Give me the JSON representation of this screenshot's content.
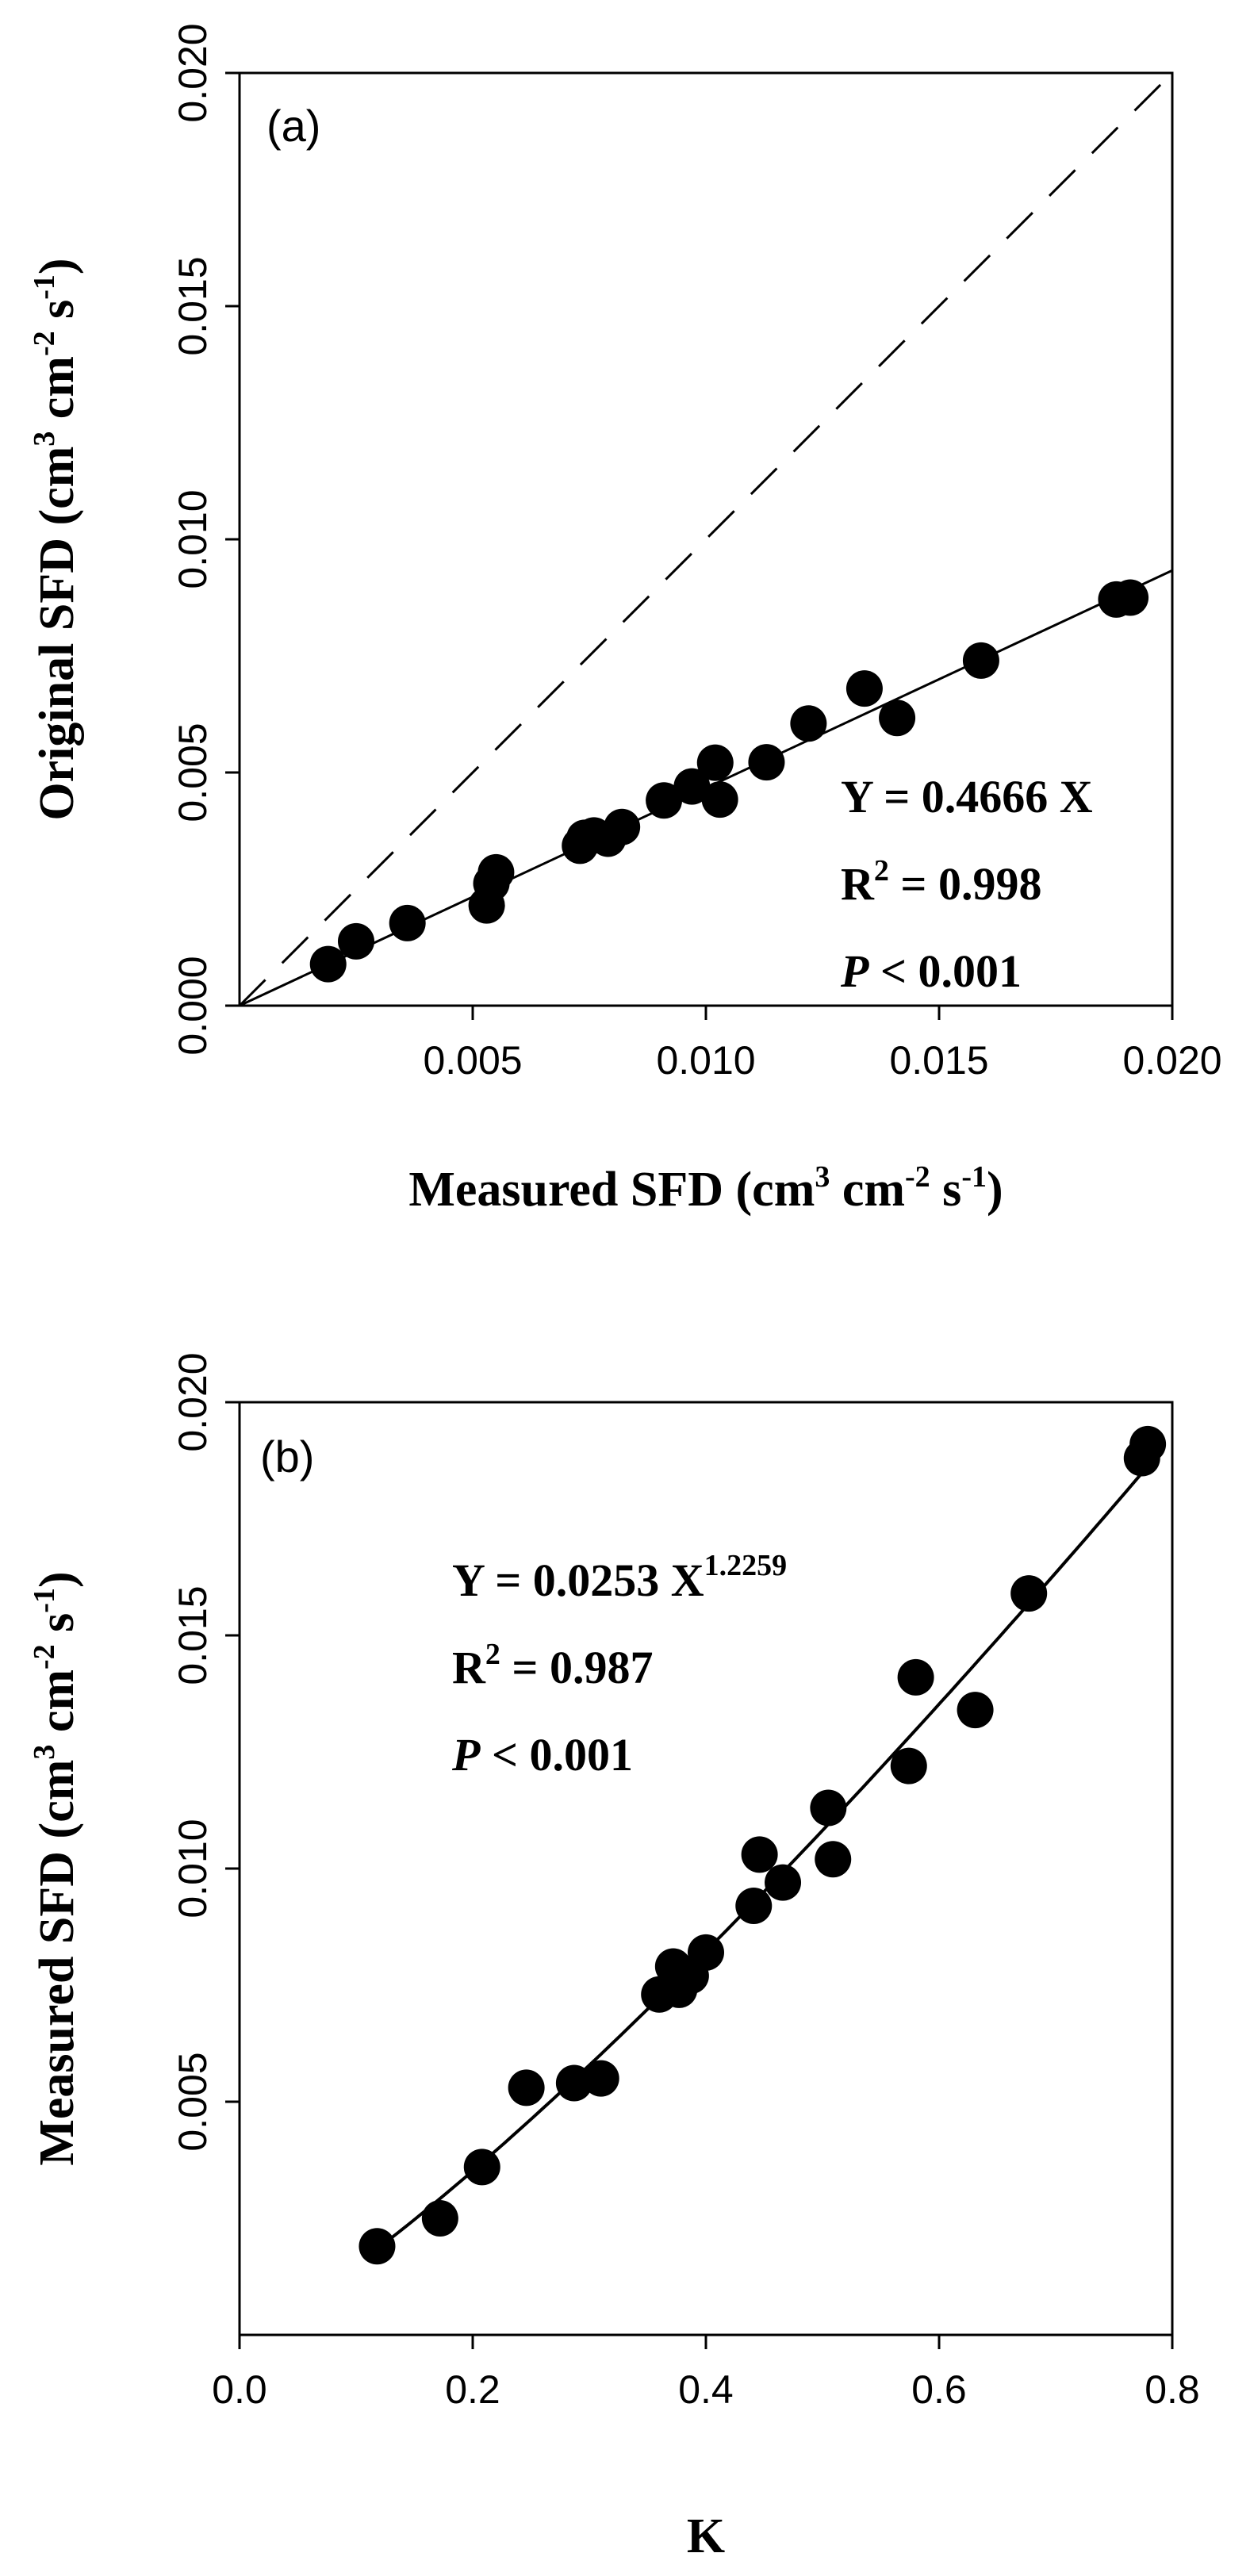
{
  "chart_data": [
    {
      "type": "scatter",
      "panel_label": "(a)",
      "ylabel_parts": [
        "Original SFD (cm",
        "3",
        " cm",
        "-2",
        " s",
        "-1",
        ")"
      ],
      "xlabel_parts": [
        "Measured SFD (cm",
        "3",
        " cm",
        "-2",
        " s",
        "-1",
        ")"
      ],
      "xlim": [
        0.0,
        0.02
      ],
      "ylim": [
        0.0,
        0.02
      ],
      "xticks": [
        0.005,
        0.01,
        0.015,
        0.02
      ],
      "xtick_labels": [
        "0.005",
        "0.010",
        "0.015",
        "0.020"
      ],
      "yticks": [
        0.0,
        0.005,
        0.01,
        0.015,
        0.02
      ],
      "ytick_labels": [
        "0.000",
        "0.005",
        "0.010",
        "0.015",
        "0.020"
      ],
      "annotations": {
        "line1": "Y = 0.4666 X",
        "line2_prefix": "R",
        "line2_sup": "2",
        "line2_suffix": " = 0.998",
        "line3_italic": "P",
        "line3_suffix": " < 0.001"
      },
      "series": [
        {
          "name": "observations",
          "x": [
            0.0019,
            0.0025,
            0.0036,
            0.0053,
            0.0054,
            0.0055,
            0.0073,
            0.0074,
            0.0076,
            0.0079,
            0.0082,
            0.0091,
            0.0097,
            0.0102,
            0.0103,
            0.0113,
            0.0122,
            0.0134,
            0.0141,
            0.0159,
            0.0188,
            0.0191
          ],
          "y": [
            0.00089,
            0.00138,
            0.00177,
            0.00215,
            0.00262,
            0.00286,
            0.00343,
            0.0036,
            0.00365,
            0.00358,
            0.00383,
            0.0044,
            0.0047,
            0.00521,
            0.00442,
            0.00522,
            0.00605,
            0.0068,
            0.00617,
            0.0074,
            0.00871,
            0.00875
          ]
        },
        {
          "name": "fit",
          "slope": 0.4666
        },
        {
          "name": "1:1 line",
          "slope": 1.0
        }
      ]
    },
    {
      "type": "scatter",
      "panel_label": "(b)",
      "ylabel_parts": [
        "Measured SFD (cm",
        "3",
        " cm",
        "-2",
        " s",
        "-1",
        ")"
      ],
      "xlabel": "K",
      "xlim": [
        0.0,
        0.8
      ],
      "ylim": [
        0.0,
        0.02
      ],
      "xticks": [
        0.0,
        0.2,
        0.4,
        0.6,
        0.8
      ],
      "xtick_labels": [
        "0.0",
        "0.2",
        "0.4",
        "0.6",
        "0.8"
      ],
      "yticks": [
        0.005,
        0.01,
        0.015,
        0.02
      ],
      "ytick_labels": [
        "0.005",
        "0.010",
        "0.015",
        "0.020"
      ],
      "annotations": {
        "line1_prefix": "Y = 0.0253 X",
        "line1_sup": "1.2259",
        "line2_prefix": "R",
        "line2_sup": "2",
        "line2_suffix": " = 0.987",
        "line3_italic": "P",
        "line3_suffix": " < 0.001"
      },
      "series": [
        {
          "name": "observations",
          "x": [
            0.118,
            0.172,
            0.208,
            0.246,
            0.287,
            0.31,
            0.36,
            0.372,
            0.377,
            0.387,
            0.4,
            0.441,
            0.446,
            0.466,
            0.505,
            0.509,
            0.574,
            0.58,
            0.631,
            0.677,
            0.774,
            0.779
          ],
          "y": [
            0.0019,
            0.0025,
            0.0036,
            0.0053,
            0.0054,
            0.0055,
            0.0073,
            0.0079,
            0.0074,
            0.0077,
            0.0082,
            0.0092,
            0.0103,
            0.0097,
            0.0113,
            0.0102,
            0.0122,
            0.0141,
            0.0134,
            0.0159,
            0.0188,
            0.0191
          ]
        },
        {
          "name": "fit",
          "coef": 0.0253,
          "exponent": 1.2259,
          "x_from": 0.118,
          "x_to": 0.785
        }
      ]
    }
  ]
}
